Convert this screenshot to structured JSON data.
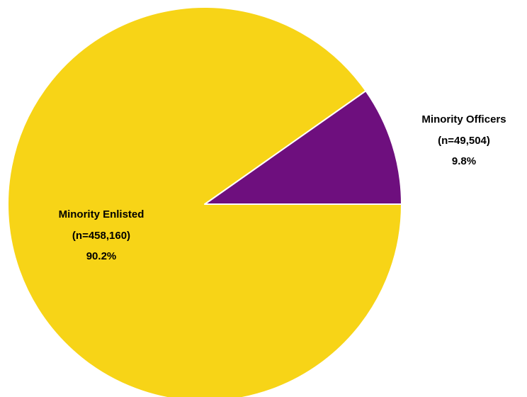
{
  "chart_data": {
    "type": "pie",
    "slices": [
      {
        "label": "Minority Officers",
        "count_label": "(n=49,504)",
        "percent_label": "9.8%",
        "value": 49504,
        "percent": 9.8,
        "color": "#6e0f7e"
      },
      {
        "label": "Minority Enlisted",
        "count_label": "(n=458,160)",
        "percent_label": "90.2%",
        "value": 458160,
        "percent": 90.2,
        "color": "#f7d417"
      }
    ],
    "slice_border_color": "#ffffff",
    "legend": "none"
  }
}
